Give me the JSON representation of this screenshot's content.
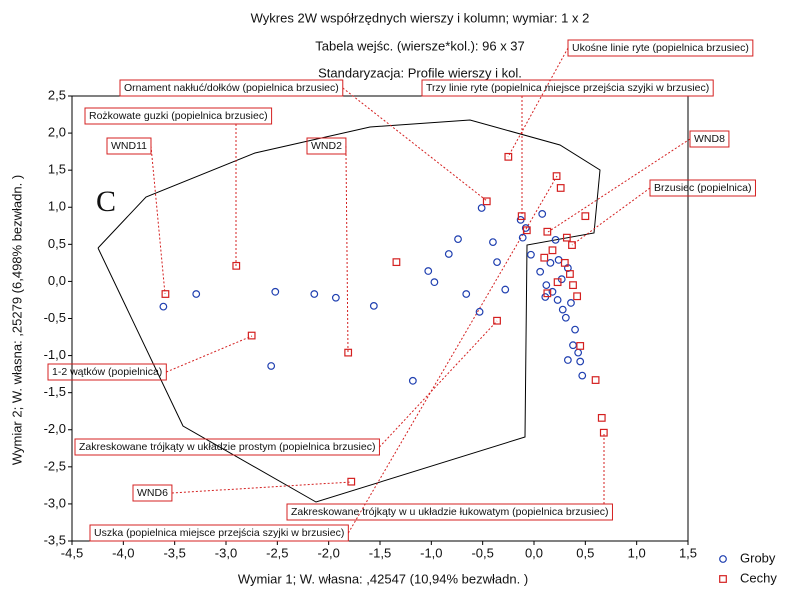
{
  "chart_data": {
    "type": "scatter",
    "title_lines": [
      "Wykres 2W współrzędnych wierszy i kolumn; wymiar:  1 x  2",
      "Tabela wejśc. (wiersze*kol.): 96 x 37",
      "Standaryzacja:   Profile wierszy i kol."
    ],
    "x_label": "Wymiar   1; W. własna: ,42547 (10,94% bezwładn. )",
    "y_label": "Wymiar   2; W. własna: ,25279 (6,498% bezwładn. )",
    "panel_letter": "C",
    "xlim": [
      -4.5,
      1.5
    ],
    "ylim": [
      -3.5,
      2.5
    ],
    "xticks": [
      {
        "value": -4.5,
        "label": "-4,5"
      },
      {
        "value": -4,
        "label": "-4,0"
      },
      {
        "value": -3.5,
        "label": "-3,5"
      },
      {
        "value": -3,
        "label": "-3,0"
      },
      {
        "value": -2.5,
        "label": "-2,5"
      },
      {
        "value": -2,
        "label": "-2,0"
      },
      {
        "value": -1.5,
        "label": "-1,5"
      },
      {
        "value": -1,
        "label": "-1,0"
      },
      {
        "value": -0.5,
        "label": "-0,5"
      },
      {
        "value": 0,
        "label": "0,0"
      },
      {
        "value": 0.5,
        "label": "0,5"
      },
      {
        "value": 1,
        "label": "1,0"
      },
      {
        "value": 1.5,
        "label": "1,5"
      }
    ],
    "yticks": [
      {
        "value": 2.5,
        "label": "2,5"
      },
      {
        "value": 2,
        "label": "2,0"
      },
      {
        "value": 1.5,
        "label": "1,5"
      },
      {
        "value": 1,
        "label": "1,0"
      },
      {
        "value": 0.5,
        "label": "0,5"
      },
      {
        "value": 0,
        "label": "0,0"
      },
      {
        "value": -0.5,
        "label": "-0,5"
      },
      {
        "value": -1,
        "label": "-1,0"
      },
      {
        "value": -1.5,
        "label": "-1,5"
      },
      {
        "value": -2,
        "label": "-2,0"
      },
      {
        "value": -2.5,
        "label": "-2,5"
      },
      {
        "value": -3,
        "label": "-3,0"
      },
      {
        "value": -3.5,
        "label": "-3,5"
      }
    ],
    "series": [
      {
        "name": "Groby",
        "color": "#1f3fb0",
        "marker": "circle",
        "x": [
          -3.61,
          -3.29,
          -2.52,
          -2.14,
          -1.93,
          -1.56,
          -2.56,
          -1.18,
          -1.03,
          -0.97,
          -0.83,
          -0.74,
          -0.66,
          -0.53,
          -0.51,
          -0.4,
          -0.36,
          -0.28,
          -0.13,
          -0.11,
          -0.08,
          0.08,
          -0.03,
          0.06,
          0.12,
          0.16,
          0.21,
          0.24,
          0.27,
          0.23,
          0.28,
          0.31,
          0.36,
          0.38,
          0.43,
          0.45,
          0.47,
          0.33,
          0.18,
          0.11,
          0.4,
          0.33
        ],
        "values": [
          -0.34,
          -0.17,
          -0.14,
          -0.17,
          -0.22,
          -0.33,
          -1.14,
          -1.34,
          0.14,
          -0.01,
          0.37,
          0.57,
          -0.17,
          -0.41,
          0.99,
          0.53,
          0.26,
          -0.11,
          0.83,
          0.59,
          0.72,
          0.91,
          0.36,
          0.13,
          -0.05,
          0.25,
          0.56,
          0.29,
          0.03,
          -0.25,
          -0.38,
          -0.49,
          -0.29,
          -0.86,
          -0.96,
          -1.08,
          -1.27,
          0.18,
          -0.14,
          -0.21,
          -0.65,
          -1.06
        ]
      },
      {
        "name": "Cechy",
        "color": "#d42020",
        "marker": "square",
        "x": [
          -3.59,
          -2.9,
          -2.75,
          -1.81,
          -1.78,
          -1.34,
          -0.46,
          -0.25,
          -0.36,
          -0.12,
          0.22,
          0.26,
          0.5,
          0.37,
          -0.07,
          0.13,
          0.18,
          0.3,
          0.35,
          0.38,
          0.13,
          0.23,
          0.42,
          0.45,
          0.6,
          0.66,
          0.68,
          0.32,
          0.1
        ],
        "values": [
          -0.17,
          0.21,
          -0.73,
          -0.96,
          -2.7,
          0.26,
          1.08,
          1.68,
          -0.53,
          0.88,
          1.42,
          1.26,
          0.88,
          0.49,
          0.69,
          0.67,
          0.42,
          0.25,
          0.1,
          -0.05,
          -0.16,
          -0.01,
          -0.2,
          -0.87,
          -1.33,
          -1.84,
          -2.04,
          0.59,
          0.32
        ]
      }
    ],
    "annotations": [
      "Ornament nakłuć/dołków (popielnica brzusiec)",
      "Ukośne linie ryte (popielnica brzusiec)",
      "Trzy linie ryte (popielnica miejsce przejścia szyjki w brzusiec)",
      "Rożkowate guzki (popielnica brzusiec)",
      "WND11",
      "WND2",
      "WND8",
      "Brzusiec (popielnica)",
      "1-2 wątków (popielnica)",
      "Zakreskowane trójkąty w układzie prostym (popielnica brzusiec)",
      "WND6",
      "Zakreskowane trójkąty w u układzie łukowatym (popielnica brzusiec)",
      "Uszka (popielnica miejsce przejścia szyjki w brzusiec)"
    ],
    "legend": "bottom-right"
  }
}
